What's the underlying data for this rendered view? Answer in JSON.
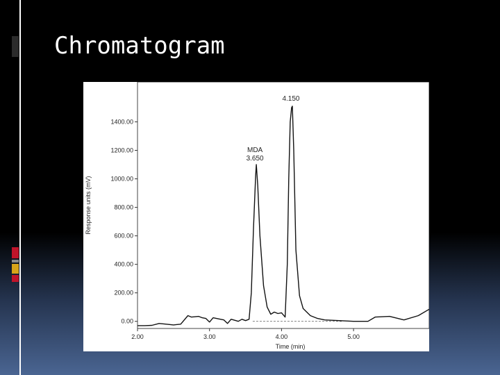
{
  "slide": {
    "title": "Chromatogram",
    "colors": {
      "background_top": "#000000",
      "background_bottom": "#4a6592",
      "title_text": "#ffffff",
      "accent_dark": "#2b2b2b",
      "accent_red": "#c0142a",
      "accent_yellow": "#d8a419",
      "accent_gray": "#8a8a8a"
    }
  },
  "chart_data": {
    "type": "line",
    "title": "",
    "xlabel": "Time (min)",
    "ylabel": "Response units (mV)",
    "xlim": [
      2.0,
      6.05
    ],
    "ylim": [
      -50,
      1680
    ],
    "x_ticks": [
      {
        "value": 2.0,
        "label": "2.00"
      },
      {
        "value": 3.0,
        "label": "3.00"
      },
      {
        "value": 4.0,
        "label": "4.00"
      },
      {
        "value": 5.0,
        "label": "5.00"
      }
    ],
    "y_ticks": [
      {
        "value": 0,
        "label": "0.00"
      },
      {
        "value": 200,
        "label": "200.00"
      },
      {
        "value": 400,
        "label": "400.00"
      },
      {
        "value": 600,
        "label": "600.00"
      },
      {
        "value": 800,
        "label": "800.00"
      },
      {
        "value": 1000,
        "label": "1000.00"
      },
      {
        "value": 1200,
        "label": "1200.00"
      },
      {
        "value": 1400,
        "label": "1400.00"
      }
    ],
    "grid": false,
    "legend": "none",
    "series": [
      {
        "x": [
          2.0,
          2.1,
          2.2,
          2.3,
          2.4,
          2.5,
          2.6,
          2.7,
          2.75,
          2.85,
          2.9,
          2.95,
          3.0,
          3.05,
          3.15,
          3.2,
          3.25,
          3.3,
          3.4,
          3.45,
          3.5,
          3.55,
          3.58,
          3.61,
          3.64,
          3.65,
          3.67,
          3.7,
          3.75,
          3.8,
          3.85,
          3.9,
          3.95,
          4.0,
          4.05,
          4.08,
          4.1,
          4.12,
          4.14,
          4.15,
          4.17,
          4.2,
          4.25,
          4.3,
          4.4,
          4.5,
          4.6,
          4.8,
          5.0,
          5.2,
          5.3,
          5.5,
          5.7,
          5.9,
          6.05
        ],
        "y": [
          -30,
          -30,
          -28,
          -15,
          -20,
          -25,
          -20,
          40,
          30,
          35,
          25,
          20,
          -5,
          25,
          15,
          10,
          -15,
          15,
          0,
          15,
          5,
          15,
          200,
          650,
          1020,
          1100,
          950,
          600,
          250,
          100,
          50,
          65,
          55,
          60,
          30,
          400,
          1000,
          1400,
          1500,
          1510,
          1200,
          500,
          180,
          90,
          40,
          20,
          10,
          5,
          0,
          0,
          30,
          35,
          10,
          40,
          85
        ],
        "color": "#111111"
      }
    ],
    "baseline": {
      "x": [
        3.6,
        4.85
      ],
      "y": [
        0,
        0
      ],
      "style": "dashed"
    },
    "annotations": [
      {
        "x": 3.65,
        "y": 1100,
        "label": "MDA",
        "label2": "3.650"
      },
      {
        "x": 4.15,
        "y": 1510,
        "label": "4.150"
      }
    ]
  }
}
